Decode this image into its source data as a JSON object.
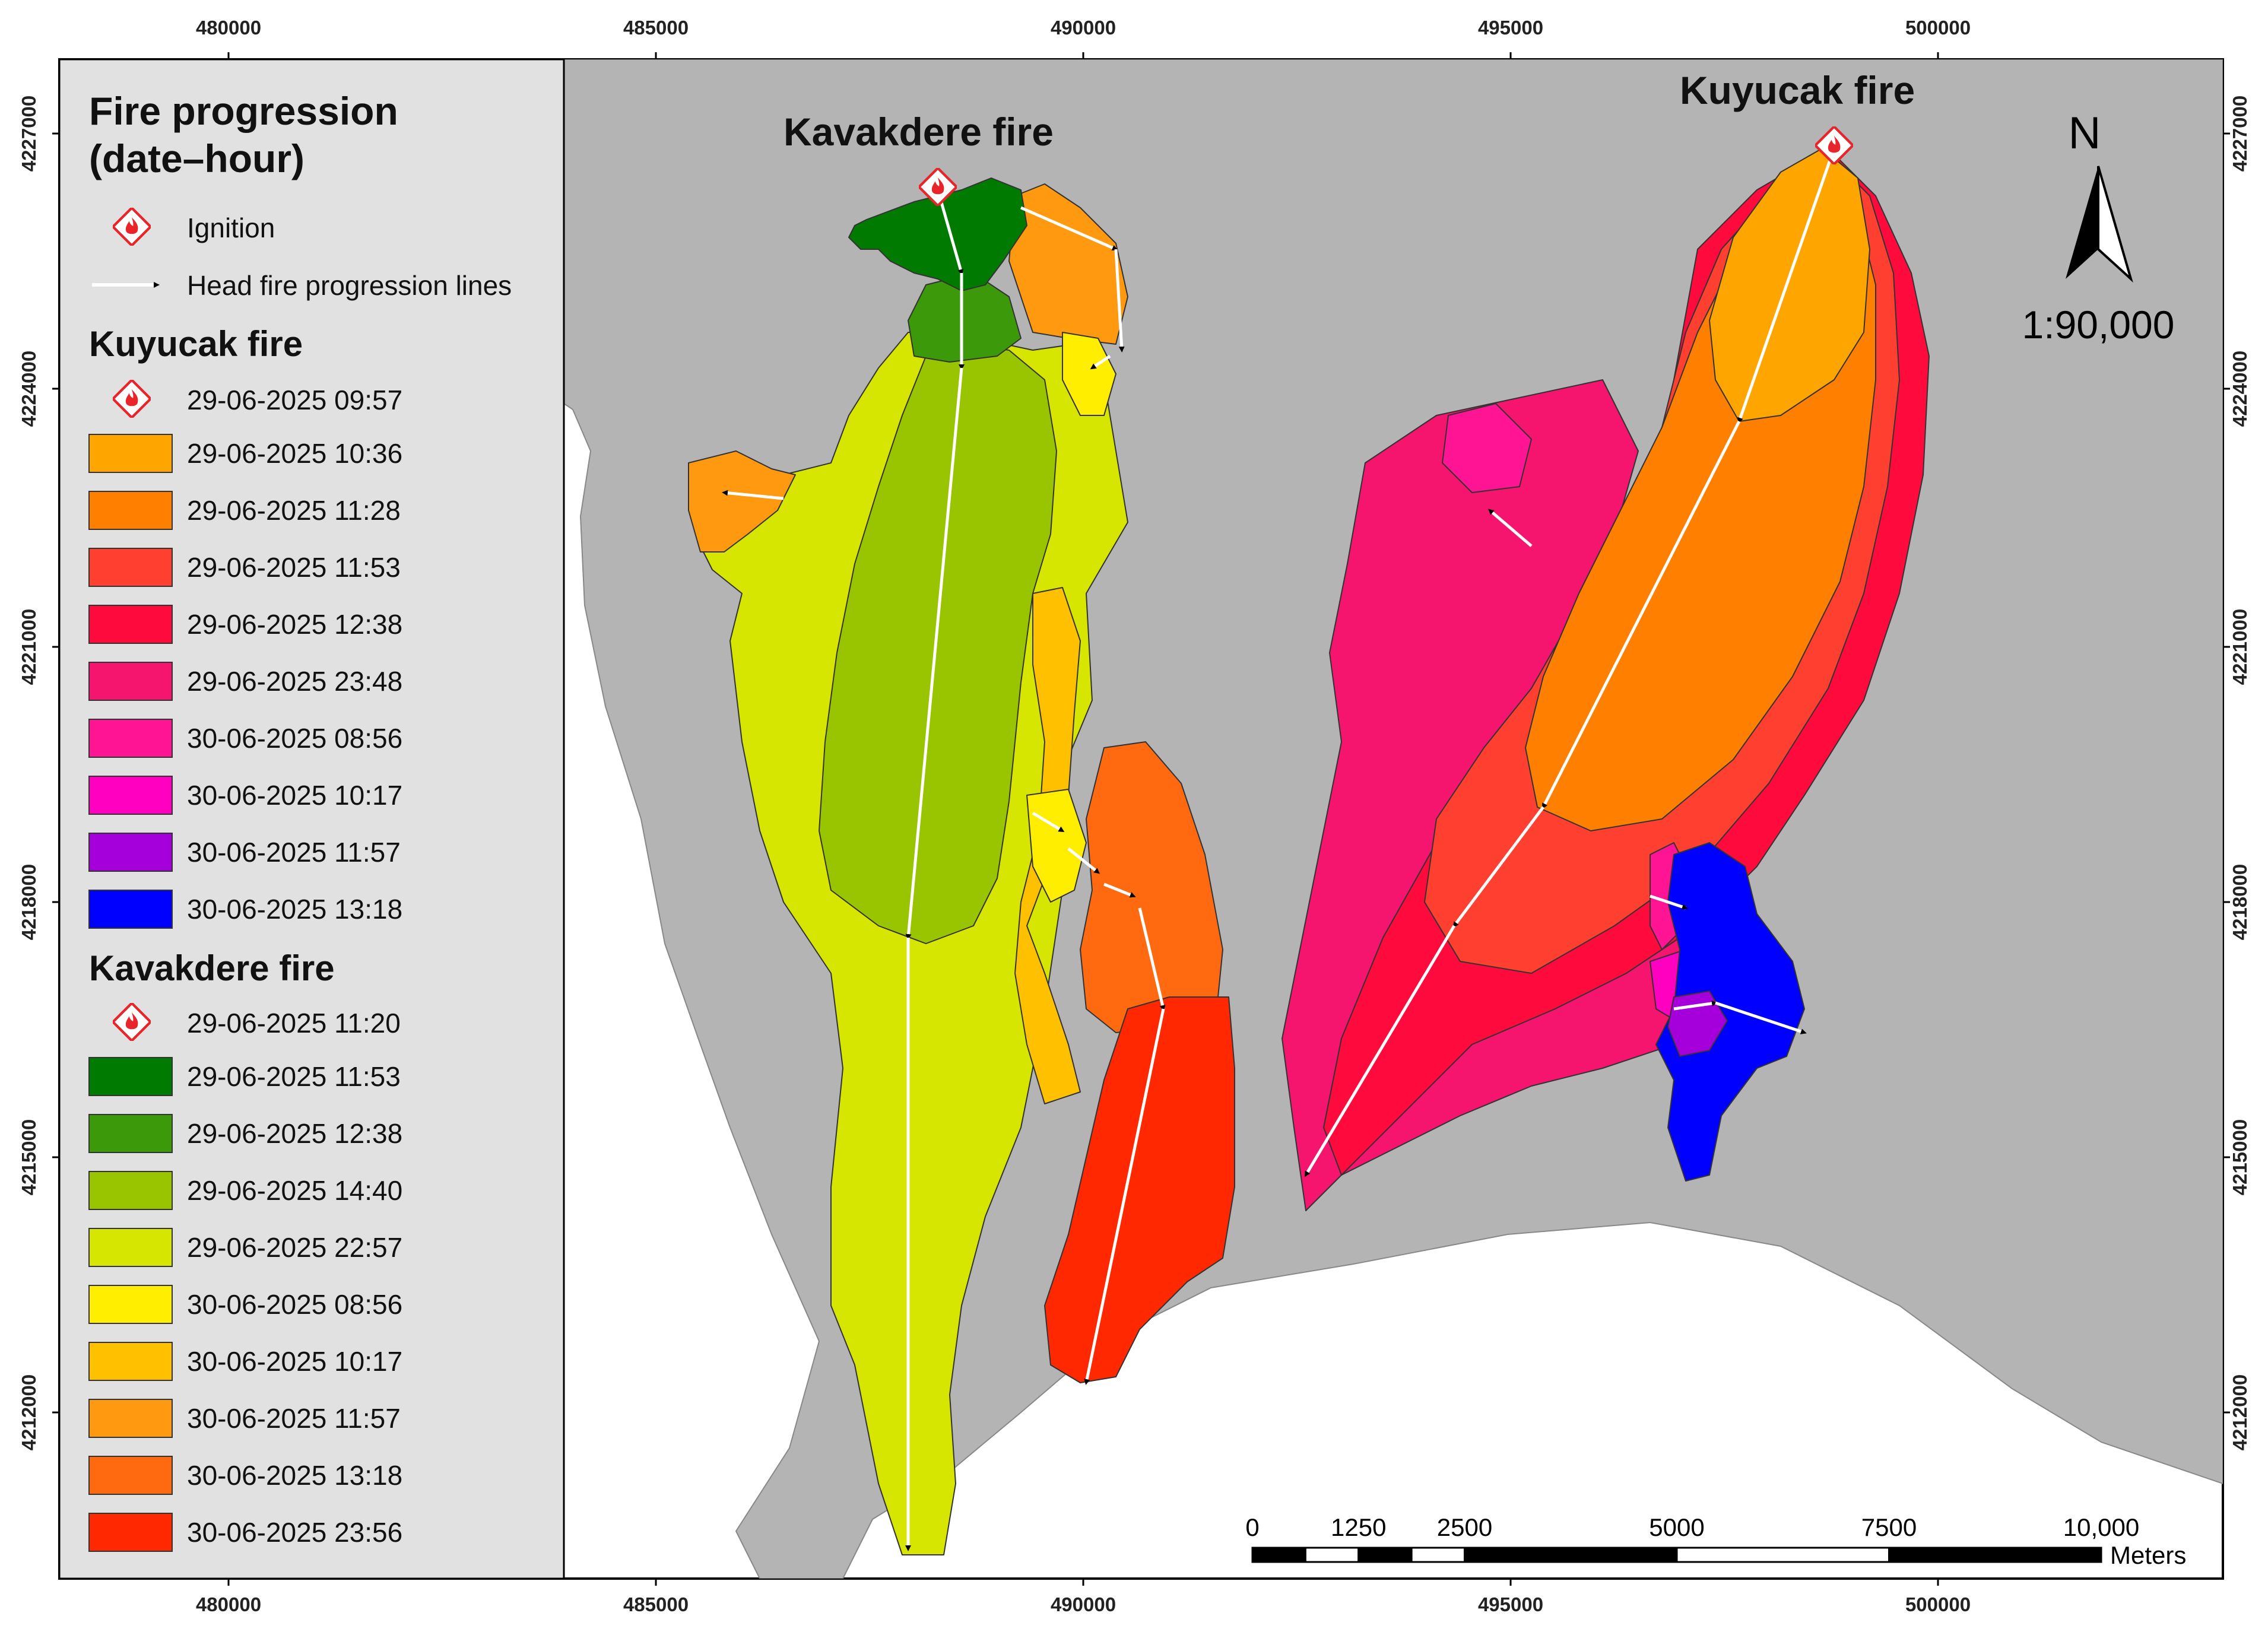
{
  "legend": {
    "title_line1": "Fire progression",
    "title_line2": "(date–hour)",
    "ignition_label": "Ignition",
    "progression_label": "Head fire progression lines",
    "kuyucak": {
      "heading": "Kuyucak fire",
      "ignition": "29-06-2025 09:57",
      "items": [
        {
          "label": "29-06-2025 10:36",
          "color": "#FFA500"
        },
        {
          "label": "29-06-2025 11:28",
          "color": "#FF7F00"
        },
        {
          "label": "29-06-2025 11:53",
          "color": "#FF4030"
        },
        {
          "label": "29-06-2025 12:38",
          "color": "#FF0A3C"
        },
        {
          "label": "29-06-2025 23:48",
          "color": "#F5146E"
        },
        {
          "label": "30-06-2025 08:56",
          "color": "#FF1493"
        },
        {
          "label": "30-06-2025 10:17",
          "color": "#FF00C0"
        },
        {
          "label": "30-06-2025 11:57",
          "color": "#A500DC"
        },
        {
          "label": "30-06-2025 13:18",
          "color": "#0000FF"
        }
      ]
    },
    "kavakdere": {
      "heading": "Kavakdere fire",
      "ignition": "29-06-2025 11:20",
      "items": [
        {
          "label": "29-06-2025 11:53",
          "color": "#007A00"
        },
        {
          "label": "29-06-2025 12:38",
          "color": "#3C9A0A"
        },
        {
          "label": "29-06-2025 14:40",
          "color": "#99C400"
        },
        {
          "label": "29-06-2025 22:57",
          "color": "#D6E600"
        },
        {
          "label": "30-06-2025 08:56",
          "color": "#FFEE00"
        },
        {
          "label": "30-06-2025 10:17",
          "color": "#FFC000"
        },
        {
          "label": "30-06-2025 11:57",
          "color": "#FF9A10"
        },
        {
          "label": "30-06-2025 13:18",
          "color": "#FF6A10"
        },
        {
          "label": "30-06-2025 23:56",
          "color": "#FF2800"
        }
      ]
    }
  },
  "map_labels": {
    "kavakdere": "Kavakdere fire",
    "kuyucak": "Kuyucak fire"
  },
  "north_arrow": {
    "letter": "N"
  },
  "scale": {
    "ratio": "1:90,000"
  },
  "scale_bar": {
    "labels": [
      "0",
      "1250",
      "2500",
      "5000",
      "7500",
      "10,000"
    ],
    "unit": "Meters"
  },
  "axes": {
    "x_ticks": [
      "480000",
      "485000",
      "490000",
      "495000",
      "500000"
    ],
    "y_ticks": [
      "4227000",
      "4224000",
      "4221000",
      "4218000",
      "4215000",
      "4212000"
    ]
  },
  "colors": {
    "land": "#B4B4B4",
    "sea": "#FFFFFF",
    "legend_bg": "#E1E1E1",
    "progression_line": "#FFFFFF",
    "ignition": "#E8252A"
  }
}
